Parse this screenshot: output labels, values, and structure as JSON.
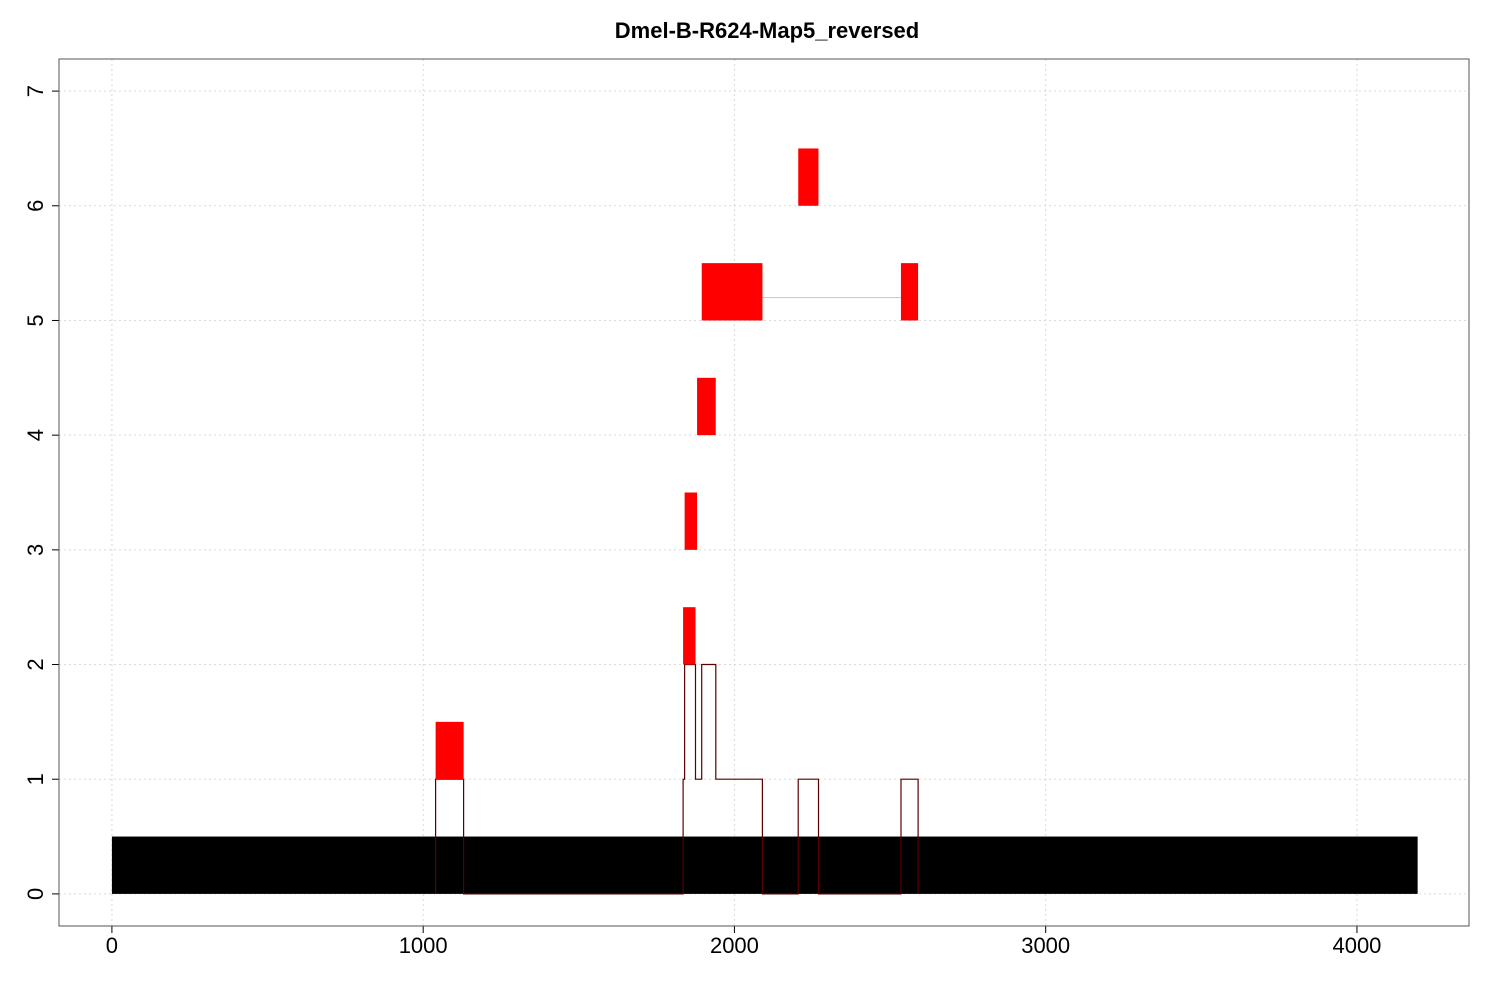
{
  "chart_data": {
    "type": "bar",
    "title": "Dmel-B-R624-Map5_reversed",
    "xlabel": "",
    "ylabel": "",
    "xlim": [
      -170,
      4360
    ],
    "ylim": [
      -0.28,
      7.28
    ],
    "x_ticks": [
      0,
      1000,
      2000,
      3000,
      4000
    ],
    "y_ticks": [
      0,
      1,
      2,
      3,
      4,
      5,
      6,
      7
    ],
    "grid": true,
    "reference_bar": {
      "x0": 0,
      "x1": 4195,
      "y0": 0,
      "y1": 0.5,
      "color": "#000000"
    },
    "hit_blocks": [
      {
        "x0": 1040,
        "x1": 1130,
        "y0": 1.0,
        "y1": 1.5
      },
      {
        "x0": 1835,
        "x1": 1875,
        "y0": 2.0,
        "y1": 2.5
      },
      {
        "x0": 1840,
        "x1": 1880,
        "y0": 3.0,
        "y1": 3.5
      },
      {
        "x0": 1880,
        "x1": 1940,
        "y0": 4.0,
        "y1": 4.5
      },
      {
        "x0": 1895,
        "x1": 2090,
        "y0": 5.0,
        "y1": 5.5
      },
      {
        "x0": 2535,
        "x1": 2590,
        "y0": 5.0,
        "y1": 5.5
      },
      {
        "x0": 2205,
        "x1": 2270,
        "y0": 6.0,
        "y1": 6.5
      }
    ],
    "connectors": [
      {
        "x0": 2090,
        "x1": 2535,
        "y": 5.2
      }
    ],
    "coverage_step": {
      "x": [
        1040,
        1040,
        1130,
        1130,
        1835,
        1835,
        1840,
        1840,
        1875,
        1875,
        1895,
        1895,
        1940,
        1940,
        2090,
        2090,
        2205,
        2205,
        2270,
        2270,
        2535,
        2535,
        2590,
        2590
      ],
      "y": [
        0,
        1,
        1,
        0,
        0,
        1,
        1,
        2,
        2,
        1,
        1,
        2,
        2,
        1,
        1,
        0,
        0,
        1,
        1,
        0,
        0,
        1,
        1,
        0
      ]
    },
    "colors": {
      "hit": "#ff0000",
      "reference": "#000000",
      "coverage": "#5a0000",
      "connector": "#cccccc"
    }
  }
}
